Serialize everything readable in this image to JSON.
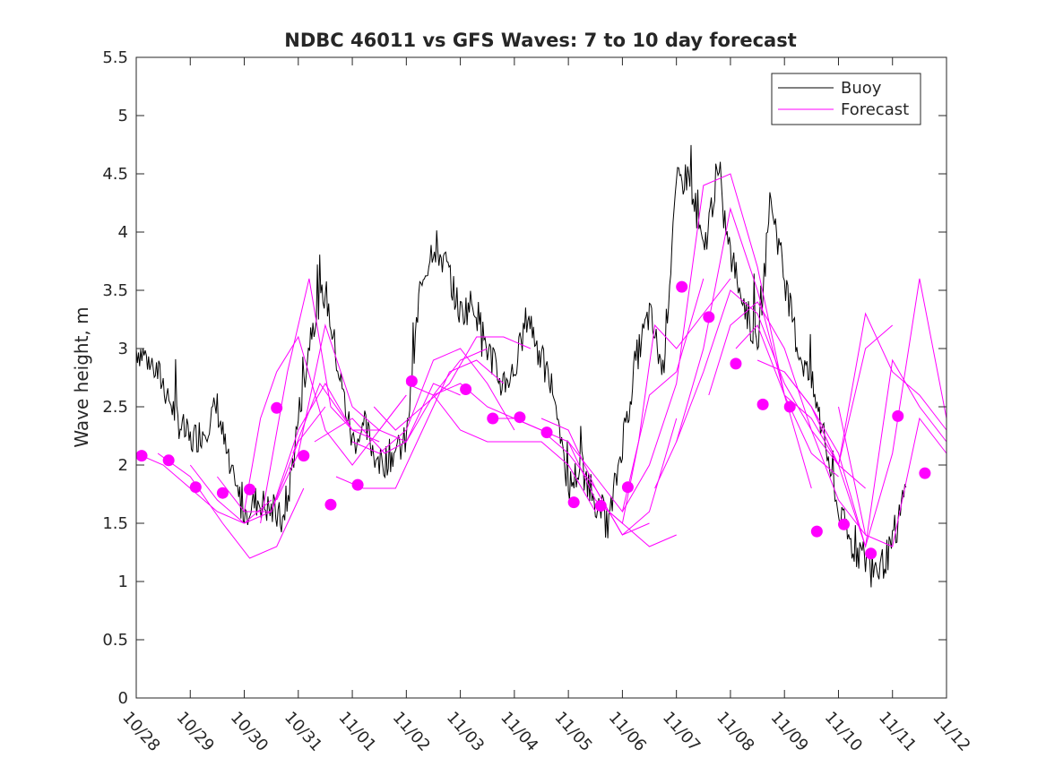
{
  "chart_data": {
    "type": "line",
    "title": "NDBC 46011 vs GFS Waves: 7 to 10 day forecast",
    "xlabel": "",
    "ylabel": "Wave height, m",
    "xlim": [
      0,
      15
    ],
    "ylim": [
      0,
      5.5
    ],
    "x_tick_values": [
      0,
      1,
      2,
      3,
      4,
      5,
      6,
      7,
      8,
      9,
      10,
      11,
      12,
      13,
      14,
      15
    ],
    "x_tick_labels": [
      "10/28",
      "10/29",
      "10/30",
      "10/31",
      "11/01",
      "11/02",
      "11/03",
      "11/04",
      "11/05",
      "11/06",
      "11/07",
      "11/08",
      "11/09",
      "11/10",
      "11/11",
      "11/12"
    ],
    "y_ticks": [
      0,
      0.5,
      1,
      1.5,
      2,
      2.5,
      3,
      3.5,
      4,
      4.5,
      5,
      5.5
    ],
    "y_tick_labels": [
      "0",
      "0.5",
      "1",
      "1.5",
      "2",
      "2.5",
      "3",
      "3.5",
      "4",
      "4.5",
      "5",
      "5.5"
    ],
    "legend": {
      "position": "top-right",
      "entries": [
        "Buoy",
        "Forecast"
      ]
    },
    "colors": {
      "buoy": "#000000",
      "forecast": "#ff00ff",
      "axes": "#262626"
    },
    "buoy": {
      "name": "Buoy",
      "x": [
        0,
        0.25,
        0.5,
        0.75,
        1,
        1.25,
        1.5,
        1.75,
        2,
        2.25,
        2.5,
        2.75,
        3,
        3.25,
        3.5,
        3.75,
        4,
        4.25,
        4.5,
        4.75,
        5,
        5.25,
        5.5,
        5.75,
        6,
        6.25,
        6.5,
        6.75,
        7,
        7.25,
        7.5,
        7.75,
        8,
        8.25,
        8.5,
        8.75,
        9,
        9.25,
        9.5,
        9.75,
        10,
        10.25,
        10.5,
        10.75,
        11,
        11.25,
        11.5,
        11.75,
        12,
        12.25,
        12.5,
        12.75,
        13,
        13.25,
        13.5,
        13.75,
        14,
        14.25
      ],
      "y": [
        3.0,
        2.9,
        2.7,
        2.4,
        2.2,
        2.3,
        2.5,
        1.9,
        1.6,
        1.7,
        1.6,
        1.5,
        2.4,
        3.2,
        3.5,
        2.8,
        2.2,
        2.3,
        2.0,
        2.1,
        2.2,
        3.5,
        3.9,
        3.7,
        3.3,
        3.4,
        3.0,
        2.7,
        2.8,
        3.3,
        2.9,
        2.6,
        1.8,
        2.0,
        1.7,
        1.5,
        2.2,
        2.9,
        3.3,
        2.8,
        4.4,
        4.5,
        3.8,
        4.5,
        3.8,
        3.4,
        3.0,
        4.3,
        3.6,
        3.0,
        2.7,
        2.2,
        1.6,
        1.3,
        1.2,
        1.1,
        1.3,
        1.8
      ],
      "noise_amplitude": 0.15
    },
    "forecast_runs": [
      {
        "x": [
          0,
          0.5,
          1,
          1.5,
          2,
          2.5
        ],
        "y": [
          2.1,
          2.0,
          1.8,
          1.6,
          1.5,
          1.7
        ]
      },
      {
        "x": [
          0.4,
          1,
          1.6,
          2.1,
          2.6,
          3.1
        ],
        "y": [
          2.1,
          1.9,
          1.5,
          1.2,
          1.3,
          1.8
        ]
      },
      {
        "x": [
          1,
          1.5,
          2,
          2.5,
          3,
          3.5
        ],
        "y": [
          2.0,
          1.7,
          1.5,
          1.6,
          2.2,
          2.5
        ]
      },
      {
        "x": [
          1.5,
          2,
          2.5,
          3,
          3.5,
          4
        ],
        "y": [
          1.9,
          1.6,
          1.6,
          2.3,
          2.7,
          2.3
        ]
      },
      {
        "x": [
          2,
          2.3,
          2.6,
          3,
          3.5,
          4,
          4.5,
          5
        ],
        "y": [
          1.6,
          2.4,
          2.8,
          3.1,
          2.3,
          2.0,
          2.3,
          2.6
        ]
      },
      {
        "x": [
          2.3,
          2.8,
          3.2,
          3.6,
          4,
          4.5
        ],
        "y": [
          1.5,
          2.8,
          3.6,
          2.5,
          2.3,
          2.2
        ]
      },
      {
        "x": [
          2.6,
          3,
          3.5,
          4,
          4.5,
          5
        ],
        "y": [
          1.7,
          2.1,
          3.2,
          2.5,
          2.3,
          2.6
        ]
      },
      {
        "x": [
          2.9,
          3.4,
          4,
          4.5,
          5,
          5.5,
          6
        ],
        "y": [
          2.1,
          2.7,
          2.3,
          2.3,
          2.2,
          2.7,
          2.6
        ]
      },
      {
        "x": [
          3.3,
          4,
          4.6,
          5,
          5.5,
          6,
          6.5
        ],
        "y": [
          2.2,
          2.4,
          2.1,
          2.2,
          2.6,
          2.9,
          3.0
        ]
      },
      {
        "x": [
          3.7,
          4.2,
          4.8,
          5.3,
          5.8,
          6.3,
          6.8
        ],
        "y": [
          1.9,
          1.8,
          1.8,
          2.3,
          2.8,
          2.9,
          2.7
        ]
      },
      {
        "x": [
          4,
          4.5,
          5,
          5.5,
          6,
          6.5,
          7
        ],
        "y": [
          2.2,
          2.1,
          2.3,
          2.9,
          3.0,
          2.7,
          2.3
        ]
      },
      {
        "x": [
          4.4,
          4.8,
          5.3,
          5.8,
          6.3,
          6.8,
          7.3
        ],
        "y": [
          2.5,
          2.3,
          2.5,
          2.7,
          3.1,
          3.1,
          3.0
        ]
      },
      {
        "x": [
          5,
          5.5,
          6,
          6.5,
          7,
          7.5,
          8,
          8.5
        ],
        "y": [
          2.7,
          2.6,
          2.3,
          2.2,
          2.2,
          2.2,
          2.0,
          1.6
        ]
      },
      {
        "x": [
          5.5,
          6,
          6.5,
          7,
          7.5,
          8,
          8.5,
          9,
          9.5
        ],
        "y": [
          2.6,
          2.7,
          2.5,
          2.4,
          2.3,
          2.1,
          1.8,
          1.4,
          1.5
        ]
      },
      {
        "x": [
          6.5,
          7,
          7.5,
          8,
          8.5,
          9,
          9.5,
          10
        ],
        "y": [
          2.4,
          2.4,
          2.3,
          2.2,
          1.7,
          1.5,
          1.3,
          1.4
        ]
      },
      {
        "x": [
          7.5,
          8,
          8.5,
          9,
          9.5,
          10
        ],
        "y": [
          2.4,
          2.3,
          1.8,
          1.4,
          1.6,
          2.4
        ]
      },
      {
        "x": [
          8,
          8.5,
          9,
          9.5,
          10,
          10.5
        ],
        "y": [
          2.2,
          1.9,
          1.6,
          2.6,
          2.8,
          3.6
        ]
      },
      {
        "x": [
          8.5,
          9,
          9.3,
          9.6,
          10,
          10.5,
          11
        ],
        "y": [
          1.7,
          1.5,
          2.2,
          3.2,
          3.0,
          3.3,
          3.6
        ]
      },
      {
        "x": [
          9,
          9.5,
          10,
          10.5,
          11,
          11.5,
          12,
          12.5
        ],
        "y": [
          1.6,
          2.0,
          2.7,
          4.4,
          4.5,
          3.7,
          2.6,
          1.8
        ]
      },
      {
        "x": [
          9.6,
          10,
          10.5,
          11,
          11.5,
          12,
          12.5,
          13
        ],
        "y": [
          1.8,
          2.2,
          3.0,
          4.2,
          3.5,
          2.6,
          2.1,
          1.9
        ]
      },
      {
        "x": [
          10,
          10.5,
          11,
          11.5,
          12,
          12.5,
          13,
          13.5
        ],
        "y": [
          2.2,
          2.8,
          3.5,
          3.3,
          2.7,
          2.3,
          2.0,
          1.8
        ]
      },
      {
        "x": [
          10.6,
          11,
          11.5,
          12,
          12.5,
          13,
          13.5
        ],
        "y": [
          2.6,
          3.2,
          3.4,
          3.0,
          2.3,
          1.7,
          1.4
        ]
      },
      {
        "x": [
          11.1,
          11.5,
          12,
          12.5,
          13,
          13.5,
          14
        ],
        "y": [
          3.0,
          3.2,
          2.6,
          2.4,
          2.0,
          3.0,
          3.2
        ]
      },
      {
        "x": [
          11.5,
          12,
          12.5,
          13,
          13.5,
          14,
          14.5,
          15
        ],
        "y": [
          2.9,
          2.8,
          2.5,
          2.0,
          3.3,
          2.8,
          2.6,
          2.3
        ]
      },
      {
        "x": [
          12,
          12.5,
          13,
          13.5,
          14,
          14.5,
          15
        ],
        "y": [
          2.8,
          2.5,
          2.0,
          1.3,
          2.1,
          3.6,
          2.4
        ]
      },
      {
        "x": [
          12.5,
          13,
          13.5,
          14,
          14.5,
          15
        ],
        "y": [
          2.5,
          2.1,
          1.3,
          2.9,
          2.5,
          2.2
        ]
      },
      {
        "x": [
          13,
          13.5,
          14,
          14.5,
          15
        ],
        "y": [
          2.5,
          1.4,
          1.3,
          2.4,
          2.1
        ]
      }
    ],
    "forecast_points": {
      "name": "Forecast",
      "x": [
        0.1,
        0.6,
        1.1,
        1.6,
        2.1,
        2.6,
        3.1,
        3.6,
        4.1,
        5.1,
        6.1,
        6.6,
        7.1,
        7.6,
        8.1,
        8.6,
        9.1,
        10.1,
        10.6,
        11.1,
        11.6,
        12.1,
        12.6,
        13.1,
        13.6,
        14.1,
        14.6
      ],
      "y": [
        2.08,
        2.04,
        1.81,
        1.76,
        1.79,
        2.49,
        2.08,
        1.66,
        1.83,
        2.72,
        2.65,
        2.4,
        2.41,
        2.28,
        1.68,
        1.65,
        1.81,
        3.53,
        3.27,
        2.87,
        2.52,
        2.5,
        1.43,
        1.49,
        1.24,
        2.42,
        1.93
      ]
    }
  }
}
